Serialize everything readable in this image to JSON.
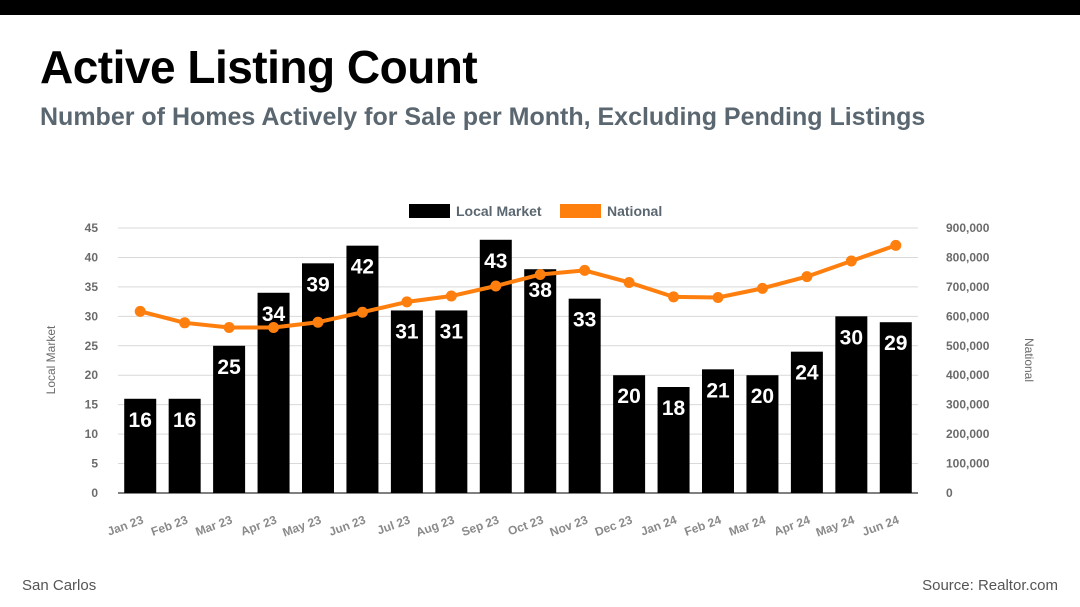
{
  "header": {
    "title": "Active Listing Count",
    "subtitle": "Number of Homes Actively for Sale per Month, Excluding Pending Listings"
  },
  "footer": {
    "location": "San Carlos",
    "source": "Source: Realtor.com"
  },
  "colors": {
    "bar": "#000000",
    "line": "#ff7f0e",
    "grid": "#d9d9d9",
    "axis_text": "#6b6b6b",
    "legend_text": "#5b6770"
  },
  "chart_data": {
    "type": "bar",
    "title": "Active Listing Count",
    "categories": [
      "Jan 23",
      "Feb 23",
      "Mar 23",
      "Apr 23",
      "May 23",
      "Jun 23",
      "Jul 23",
      "Aug 23",
      "Sep 23",
      "Oct 23",
      "Nov 23",
      "Dec 23",
      "Jan 24",
      "Feb 24",
      "Mar 24",
      "Apr 24",
      "May 24",
      "Jun 24"
    ],
    "series": [
      {
        "name": "Local Market",
        "type": "bar",
        "axis": "left",
        "values": [
          16,
          16,
          25,
          34,
          39,
          42,
          31,
          31,
          43,
          38,
          33,
          20,
          18,
          21,
          20,
          24,
          30,
          29
        ]
      },
      {
        "name": "National",
        "type": "line",
        "axis": "right",
        "values": [
          617000,
          578000,
          562000,
          562000,
          580000,
          614000,
          649000,
          669000,
          703000,
          742000,
          756000,
          715000,
          666000,
          664000,
          695000,
          735000,
          788000,
          841000
        ]
      }
    ],
    "ylabel": "Local Market",
    "ylim": [
      0,
      45
    ],
    "y_ticks": [
      "0",
      "5",
      "10",
      "15",
      "20",
      "25",
      "30",
      "35",
      "40",
      "45"
    ],
    "y2label": "National",
    "y2lim": [
      0,
      900000
    ],
    "y2_ticks": [
      "0",
      "100,000",
      "200,000",
      "300,000",
      "400,000",
      "500,000",
      "600,000",
      "700,000",
      "800,000",
      "900,000"
    ],
    "legend": [
      "Local Market",
      "National"
    ],
    "legend_position": "top-center",
    "grid": true
  }
}
